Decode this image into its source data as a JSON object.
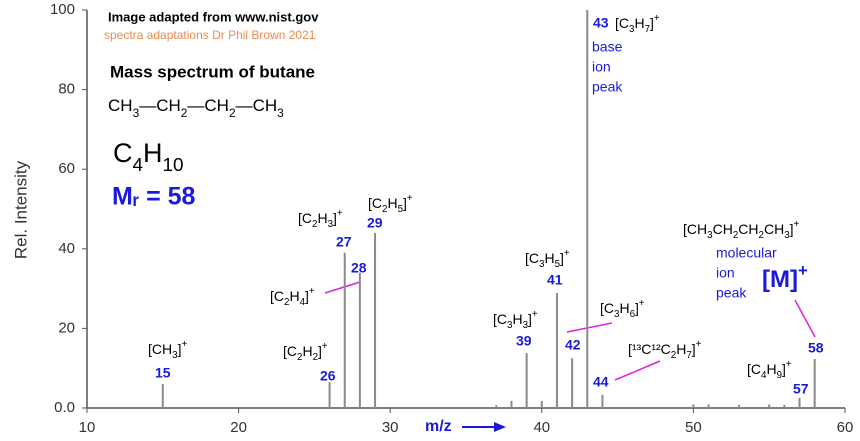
{
  "chart_data": {
    "type": "stem",
    "title": "Mass spectrum of butane",
    "source": "Image adapted from www.nist.gov",
    "credit": "spectra adaptations Dr Phil Brown 2021",
    "structure": "CH3—CH2—CH2—CH3",
    "formula": "C4H10",
    "relative_mass": "Mᵣ = 58",
    "x_label": "m/z",
    "y_label": "Rel. Intensity",
    "x": [
      15,
      26,
      27,
      28,
      29,
      37,
      38,
      39,
      40,
      41,
      42,
      43,
      44,
      50,
      51,
      53,
      55,
      56,
      57,
      58
    ],
    "values": [
      6,
      6.5,
      39,
      34,
      44,
      0.7,
      1.8,
      13.8,
      1.8,
      28.9,
      12.5,
      100,
      3.3,
      0.9,
      0.9,
      0.8,
      0.9,
      0.8,
      2.5,
      12.3
    ],
    "color": "#8a8a8a",
    "xlim": [
      10,
      60
    ],
    "ylim": [
      0,
      100
    ],
    "xticks": [
      10,
      20,
      30,
      40,
      50,
      60
    ],
    "yticks": [
      {
        "value": 0,
        "label": "0.0"
      },
      20,
      40,
      60,
      80,
      100
    ],
    "annotations": [
      {
        "mz": 15,
        "ion": "[CH3]+"
      },
      {
        "mz": 26,
        "ion": "[C2H2]+"
      },
      {
        "mz": 27,
        "ion": "[C2H3]+"
      },
      {
        "mz": 28,
        "ion": "[C2H4]+"
      },
      {
        "mz": 29,
        "ion": "[C2H5]+"
      },
      {
        "mz": 39,
        "ion": "[C3H3]+"
      },
      {
        "mz": 41,
        "ion": "[C3H5]+"
      },
      {
        "mz": 42,
        "ion": "[C3H6]+"
      },
      {
        "mz": 43,
        "ion": "[C3H7]+",
        "note": [
          "base",
          "ion",
          "peak"
        ]
      },
      {
        "mz": 44,
        "ion": "[¹³C¹²C2H7]+"
      },
      {
        "mz": 57,
        "ion": "[C4H9]+"
      },
      {
        "mz": 58,
        "ion": "[CH3CH2CH2CH3]+",
        "note": [
          "molecular",
          "ion",
          "peak"
        ],
        "symbol": "[M]+"
      }
    ]
  }
}
